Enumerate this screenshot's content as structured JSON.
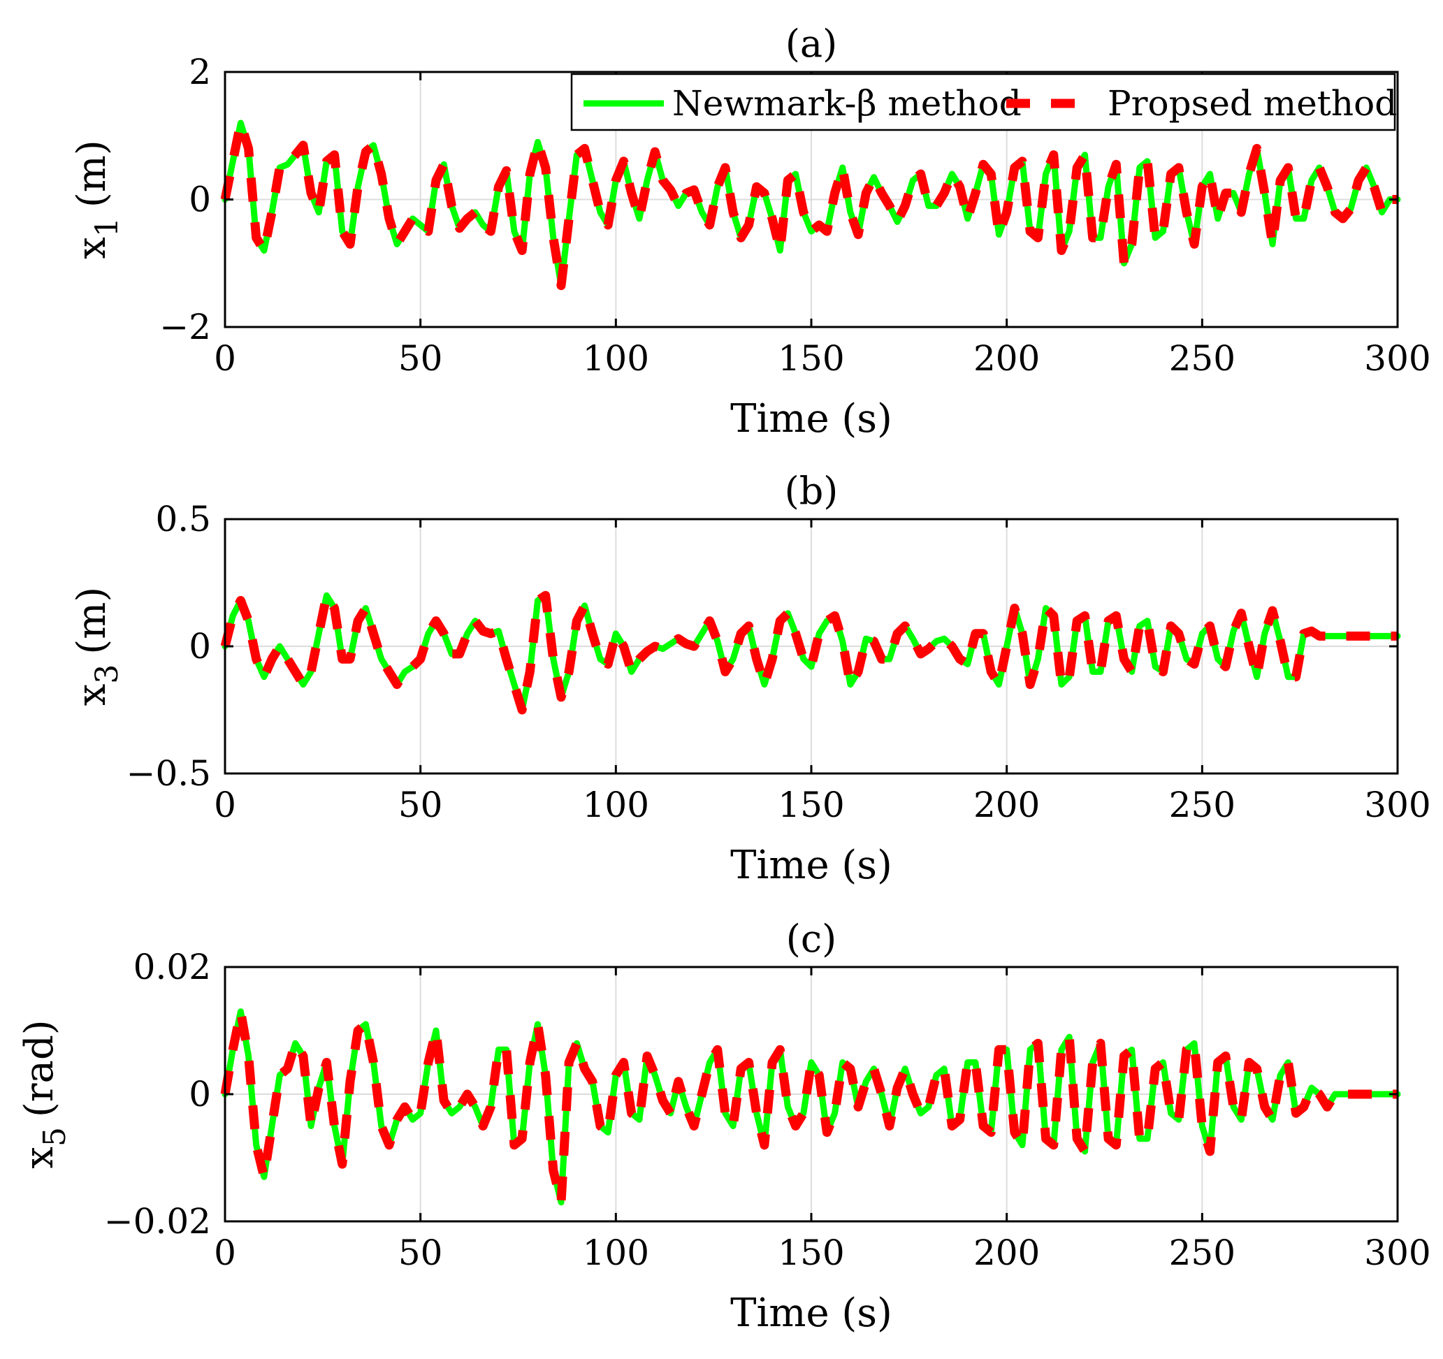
{
  "chart_data": [
    {
      "type": "line",
      "title": "(a)",
      "xlabel": "Time (s)",
      "ylabel": "x",
      "ylabel_sub": "1",
      "ylabel_unit": "(m)",
      "xlim": [
        0,
        300
      ],
      "ylim": [
        -2,
        2
      ],
      "xticks": [
        "0",
        "50",
        "100",
        "150",
        "200",
        "250",
        "300"
      ],
      "yticks": [
        "2",
        "0",
        "−2"
      ],
      "ytick_values": [
        2,
        0,
        -2
      ],
      "grid": true,
      "legend": {
        "placement": "top-right",
        "entries": [
          "Newmark-β method",
          "Propsed method"
        ]
      },
      "series": [
        {
          "name": "Newmark-β method",
          "color": "#00ff00",
          "style": "solid"
        },
        {
          "name": "Propsed method",
          "color": "#ff0000",
          "style": "dashed"
        }
      ],
      "x": [
        0,
        2,
        4,
        6,
        8,
        10,
        12,
        14,
        16,
        18,
        20,
        22,
        24,
        26,
        28,
        30,
        32,
        34,
        36,
        38,
        40,
        42,
        44,
        46,
        48,
        50,
        52,
        54,
        56,
        58,
        60,
        62,
        64,
        66,
        68,
        70,
        72,
        74,
        76,
        78,
        80,
        82,
        84,
        86,
        88,
        90,
        92,
        94,
        96,
        98,
        100,
        102,
        104,
        106,
        108,
        110,
        112,
        114,
        116,
        118,
        120,
        122,
        124,
        126,
        128,
        130,
        132,
        134,
        136,
        138,
        140,
        142,
        144,
        146,
        148,
        150,
        152,
        154,
        156,
        158,
        160,
        162,
        164,
        166,
        168,
        170,
        172,
        174,
        176,
        178,
        180,
        182,
        184,
        186,
        188,
        190,
        192,
        194,
        196,
        198,
        200,
        202,
        204,
        206,
        208,
        210,
        212,
        214,
        216,
        218,
        220,
        222,
        224,
        226,
        228,
        230,
        232,
        234,
        236,
        238,
        240,
        242,
        244,
        246,
        248,
        250,
        252,
        254,
        256,
        258,
        260,
        262,
        264,
        266,
        268,
        270,
        272,
        274,
        276,
        278,
        280,
        282,
        284,
        286,
        288,
        290,
        292,
        294,
        296,
        298,
        300
      ],
      "values": [
        0,
        0.6,
        1.2,
        0.8,
        -0.6,
        -0.8,
        -0.2,
        0.5,
        0.55,
        0.7,
        0.85,
        0.1,
        -0.2,
        0.6,
        0.7,
        -0.5,
        -0.7,
        0.2,
        0.75,
        0.85,
        0.4,
        -0.3,
        -0.7,
        -0.5,
        -0.3,
        -0.4,
        -0.5,
        0.3,
        0.55,
        -0.1,
        -0.45,
        -0.3,
        -0.2,
        -0.4,
        -0.5,
        0.2,
        0.45,
        -0.5,
        -0.8,
        0.4,
        0.9,
        0.5,
        -0.6,
        -1.35,
        -0.3,
        0.7,
        0.8,
        0.3,
        -0.2,
        -0.4,
        0.3,
        0.6,
        0.1,
        -0.3,
        0.3,
        0.75,
        0.3,
        0.15,
        -0.1,
        0.1,
        0.15,
        -0.2,
        -0.4,
        0.2,
        0.5,
        -0.2,
        -0.6,
        -0.4,
        0.2,
        0.1,
        -0.3,
        -0.8,
        0.3,
        0.4,
        -0.2,
        -0.5,
        -0.4,
        -0.5,
        0.1,
        0.5,
        -0.2,
        -0.55,
        0.1,
        0.35,
        0.1,
        -0.1,
        -0.35,
        -0.1,
        0.3,
        0.4,
        -0.1,
        -0.1,
        0.1,
        0.4,
        0.2,
        -0.3,
        0.1,
        0.55,
        0.4,
        -0.55,
        -0.2,
        0.5,
        0.6,
        -0.5,
        -0.6,
        0.4,
        0.7,
        -0.8,
        -0.5,
        0.5,
        0.7,
        -0.6,
        -0.6,
        0.2,
        0.55,
        -1.0,
        -0.7,
        0.5,
        0.6,
        -0.6,
        -0.5,
        0.4,
        0.5,
        -0.2,
        -0.7,
        0.2,
        0.4,
        -0.3,
        0.1,
        0.1,
        -0.2,
        0.4,
        0.8,
        0.1,
        -0.7,
        0.3,
        0.5,
        -0.3,
        -0.3,
        0.3,
        0.5,
        0.2,
        -0.2,
        -0.3,
        -0.15,
        0.3,
        0.5,
        0.2,
        -0.2,
        0,
        0
      ]
    },
    {
      "type": "line",
      "title": "(b)",
      "xlabel": "Time (s)",
      "ylabel": "x",
      "ylabel_sub": "3",
      "ylabel_unit": "(m)",
      "xlim": [
        0,
        300
      ],
      "ylim": [
        -0.5,
        0.5
      ],
      "xticks": [
        "0",
        "50",
        "100",
        "150",
        "200",
        "250",
        "300"
      ],
      "yticks": [
        "0.5",
        "0",
        "−0.5"
      ],
      "ytick_values": [
        0.5,
        0,
        -0.5
      ],
      "grid": true,
      "series": [
        {
          "name": "Newmark-β method",
          "color": "#00ff00",
          "style": "solid"
        },
        {
          "name": "Propsed method",
          "color": "#ff0000",
          "style": "dashed"
        }
      ],
      "x": [
        0,
        2,
        4,
        6,
        8,
        10,
        12,
        14,
        16,
        18,
        20,
        22,
        24,
        26,
        28,
        30,
        32,
        34,
        36,
        38,
        40,
        42,
        44,
        46,
        48,
        50,
        52,
        54,
        56,
        58,
        60,
        62,
        64,
        66,
        68,
        70,
        72,
        74,
        76,
        78,
        80,
        82,
        84,
        86,
        88,
        90,
        92,
        94,
        96,
        98,
        100,
        102,
        104,
        106,
        108,
        110,
        112,
        114,
        116,
        118,
        120,
        122,
        124,
        126,
        128,
        130,
        132,
        134,
        136,
        138,
        140,
        142,
        144,
        146,
        148,
        150,
        152,
        154,
        156,
        158,
        160,
        162,
        164,
        166,
        168,
        170,
        172,
        174,
        176,
        178,
        180,
        182,
        184,
        186,
        188,
        190,
        192,
        194,
        196,
        198,
        200,
        202,
        204,
        206,
        208,
        210,
        212,
        214,
        216,
        218,
        220,
        222,
        224,
        226,
        228,
        230,
        232,
        234,
        236,
        238,
        240,
        242,
        244,
        246,
        248,
        250,
        252,
        254,
        256,
        258,
        260,
        262,
        264,
        266,
        268,
        270,
        272,
        274,
        276,
        278,
        280,
        282,
        284,
        286,
        288,
        290,
        292,
        294,
        296,
        298,
        300
      ],
      "values": [
        0,
        0.12,
        0.18,
        0.1,
        -0.05,
        -0.12,
        -0.05,
        0,
        -0.05,
        -0.1,
        -0.15,
        -0.1,
        0.05,
        0.2,
        0.15,
        -0.05,
        -0.05,
        0.1,
        0.15,
        0.05,
        -0.05,
        -0.1,
        -0.15,
        -0.1,
        -0.08,
        -0.05,
        0.05,
        0.1,
        0.05,
        -0.03,
        -0.03,
        0.05,
        0.1,
        0.06,
        0.05,
        0.06,
        -0.05,
        -0.15,
        -0.25,
        -0.1,
        0.18,
        0.2,
        -0.05,
        -0.2,
        -0.1,
        0.1,
        0.16,
        0.05,
        -0.05,
        -0.07,
        0.05,
        0,
        -0.1,
        -0.05,
        -0.02,
        0,
        -0.01,
        0.01,
        0.03,
        0.01,
        0,
        0.05,
        0.1,
        0.02,
        -0.1,
        -0.05,
        0.05,
        0.08,
        -0.05,
        -0.15,
        -0.05,
        0.1,
        0.13,
        0.05,
        -0.05,
        -0.08,
        0.05,
        0.1,
        0.12,
        0.02,
        -0.15,
        -0.1,
        0.03,
        0.02,
        -0.05,
        -0.05,
        0.05,
        0.08,
        0.03,
        -0.03,
        -0.01,
        0.02,
        0.03,
        0,
        -0.05,
        -0.07,
        0.05,
        0.05,
        -0.1,
        -0.15,
        0,
        0.15,
        0.05,
        -0.15,
        -0.05,
        0.15,
        0.12,
        -0.15,
        -0.12,
        0.1,
        0.12,
        -0.1,
        -0.1,
        0.1,
        0.12,
        -0.05,
        -0.1,
        0.08,
        0.1,
        -0.08,
        -0.1,
        0.08,
        0.05,
        -0.05,
        -0.07,
        0.05,
        0.08,
        -0.05,
        -0.08,
        0.06,
        0.13,
        0,
        -0.12,
        0.05,
        0.14,
        0.02,
        -0.12,
        -0.12,
        0.05,
        0.06,
        0.04,
        0.04,
        0.04,
        0.04,
        0.04,
        0.04,
        0.04,
        0.04,
        0.04,
        0.04,
        0.04
      ]
    },
    {
      "type": "line",
      "title": "(c)",
      "xlabel": "Time (s)",
      "ylabel": "x",
      "ylabel_sub": "5",
      "ylabel_unit": "(rad)",
      "xlim": [
        0,
        300
      ],
      "ylim": [
        -0.02,
        0.02
      ],
      "xticks": [
        "0",
        "50",
        "100",
        "150",
        "200",
        "250",
        "300"
      ],
      "yticks": [
        "0.02",
        "0",
        "−0.02"
      ],
      "ytick_values": [
        0.02,
        0,
        -0.02
      ],
      "grid": true,
      "series": [
        {
          "name": "Newmark-β method",
          "color": "#00ff00",
          "style": "solid"
        },
        {
          "name": "Propsed method",
          "color": "#ff0000",
          "style": "dashed"
        }
      ],
      "x": [
        0,
        2,
        4,
        6,
        8,
        10,
        12,
        14,
        16,
        18,
        20,
        22,
        24,
        26,
        28,
        30,
        32,
        34,
        36,
        38,
        40,
        42,
        44,
        46,
        48,
        50,
        52,
        54,
        56,
        58,
        60,
        62,
        64,
        66,
        68,
        70,
        72,
        74,
        76,
        78,
        80,
        82,
        84,
        86,
        88,
        90,
        92,
        94,
        96,
        98,
        100,
        102,
        104,
        106,
        108,
        110,
        112,
        114,
        116,
        118,
        120,
        122,
        124,
        126,
        128,
        130,
        132,
        134,
        136,
        138,
        140,
        142,
        144,
        146,
        148,
        150,
        152,
        154,
        156,
        158,
        160,
        162,
        164,
        166,
        168,
        170,
        172,
        174,
        176,
        178,
        180,
        182,
        184,
        186,
        188,
        190,
        192,
        194,
        196,
        198,
        200,
        202,
        204,
        206,
        208,
        210,
        212,
        214,
        216,
        218,
        220,
        222,
        224,
        226,
        228,
        230,
        232,
        234,
        236,
        238,
        240,
        242,
        244,
        246,
        248,
        250,
        252,
        254,
        256,
        258,
        260,
        262,
        264,
        266,
        268,
        270,
        272,
        274,
        276,
        278,
        280,
        282,
        284,
        286,
        288,
        290,
        292,
        294,
        296,
        298,
        300
      ],
      "values": [
        0,
        0.007,
        0.013,
        0.006,
        -0.008,
        -0.013,
        -0.005,
        0.003,
        0.004,
        0.008,
        0.006,
        -0.005,
        0.001,
        0.005,
        -0.005,
        -0.011,
        0.002,
        0.01,
        0.011,
        0.005,
        -0.005,
        -0.008,
        -0.004,
        -0.002,
        -0.004,
        -0.003,
        0.005,
        0.01,
        -0.001,
        -0.003,
        -0.002,
        0.0,
        -0.002,
        -0.005,
        -0.002,
        0.007,
        0.007,
        -0.008,
        -0.007,
        0.005,
        0.011,
        0.003,
        -0.012,
        -0.017,
        0.005,
        0.008,
        0.004,
        0.002,
        -0.005,
        -0.006,
        0.003,
        0.005,
        -0.003,
        -0.004,
        0.006,
        0.003,
        -0.001,
        -0.003,
        0.002,
        -0.002,
        -0.005,
        0.0,
        0.005,
        0.007,
        -0.003,
        -0.005,
        0.004,
        0.005,
        -0.003,
        -0.008,
        0.005,
        0.007,
        -0.002,
        -0.005,
        -0.003,
        0.005,
        0.003,
        -0.006,
        -0.003,
        0.005,
        0.004,
        -0.002,
        0.002,
        0.004,
        0.0,
        -0.005,
        0.001,
        0.004,
        0.0,
        -0.003,
        -0.002,
        0.003,
        0.004,
        -0.005,
        -0.004,
        0.005,
        0.005,
        -0.005,
        -0.006,
        0.007,
        0.007,
        -0.006,
        -0.008,
        0.007,
        0.008,
        -0.007,
        -0.008,
        0.007,
        0.009,
        -0.007,
        -0.009,
        0.005,
        0.008,
        -0.007,
        -0.008,
        0.006,
        0.007,
        -0.007,
        -0.007,
        0.004,
        0.005,
        -0.003,
        -0.004,
        0.007,
        0.008,
        -0.005,
        -0.009,
        0.005,
        0.006,
        -0.002,
        -0.004,
        0.005,
        0.004,
        -0.002,
        -0.004,
        0.003,
        0.005,
        -0.003,
        -0.002,
        0.001,
        0.0,
        -0.002,
        0.0,
        0.0,
        0.0,
        0.0,
        0.0,
        0.0,
        0.0,
        0.0,
        0.0
      ]
    }
  ]
}
